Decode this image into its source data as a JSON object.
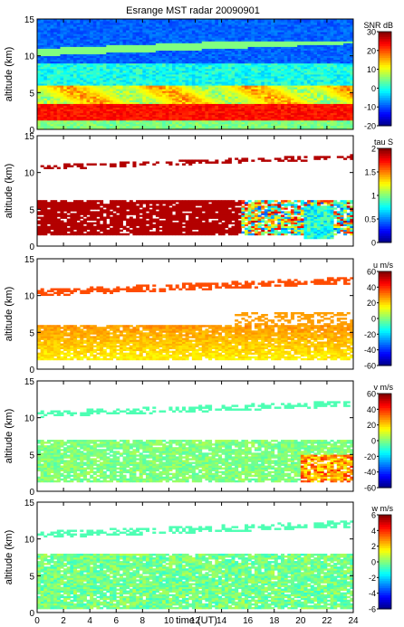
{
  "title": "Esrange MST radar 20090901",
  "xlabel": "time (UT)",
  "ylabel": "altitude (km)",
  "x_ticks": [
    0,
    2,
    4,
    6,
    8,
    10,
    12,
    14,
    16,
    18,
    20,
    22,
    24
  ],
  "y_ticks": [
    0,
    5,
    10,
    15
  ],
  "chart_data": [
    {
      "type": "heatmap",
      "id": "snr",
      "colorbar_label": "SNR dB",
      "clim": [
        -20,
        30
      ],
      "cbar_ticks": [
        -20,
        -10,
        0,
        10,
        20,
        30
      ],
      "xlim": [
        0,
        24
      ],
      "ylim": [
        0,
        15
      ]
    },
    {
      "type": "heatmap",
      "id": "tau",
      "colorbar_label": "tau S",
      "clim": [
        0,
        2
      ],
      "cbar_ticks": [
        0,
        0.5,
        1,
        1.5,
        2
      ],
      "xlim": [
        0,
        24
      ],
      "ylim": [
        0,
        15
      ]
    },
    {
      "type": "heatmap",
      "id": "u",
      "colorbar_label": "u m/s",
      "clim": [
        -60,
        60
      ],
      "cbar_ticks": [
        -60,
        -40,
        -20,
        0,
        20,
        40,
        60
      ],
      "xlim": [
        0,
        24
      ],
      "ylim": [
        0,
        15
      ]
    },
    {
      "type": "heatmap",
      "id": "v",
      "colorbar_label": "v m/s",
      "clim": [
        -60,
        60
      ],
      "cbar_ticks": [
        -60,
        -40,
        -20,
        0,
        20,
        40,
        60
      ],
      "xlim": [
        0,
        24
      ],
      "ylim": [
        0,
        15
      ]
    },
    {
      "type": "heatmap",
      "id": "w",
      "colorbar_label": "w m/s",
      "clim": [
        -6,
        6
      ],
      "cbar_ticks": [
        -6,
        -4,
        -2,
        0,
        2,
        4,
        6
      ],
      "xlim": [
        0,
        24
      ],
      "ylim": [
        0,
        15
      ]
    }
  ]
}
